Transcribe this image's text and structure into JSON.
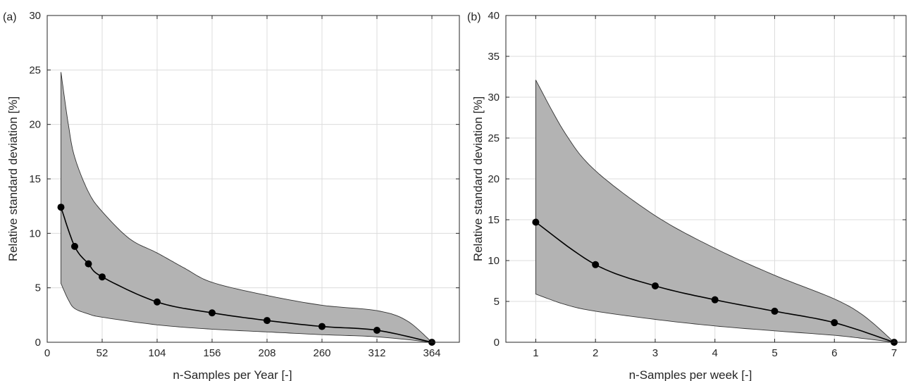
{
  "colors": {
    "band": "#b3b3b3",
    "line": "#000000",
    "grid": "#dcdcdc",
    "axis": "#262626"
  },
  "chart_data": [
    {
      "panel_label": "(a)",
      "type": "line",
      "xlabel": "n-Samples per Year [-]",
      "ylabel": "Relative standard deviation  [%]",
      "xlim": [
        0,
        390
      ],
      "ylim": [
        0,
        30
      ],
      "xticks": [
        0,
        52,
        104,
        156,
        208,
        260,
        312,
        364
      ],
      "yticks": [
        0,
        5,
        10,
        15,
        20,
        25,
        30
      ],
      "grid": true,
      "series": [
        {
          "role": "mean",
          "x": [
            13,
            26,
            39,
            52,
            104,
            156,
            208,
            260,
            312,
            364
          ],
          "y": [
            12.4,
            8.8,
            7.2,
            6.0,
            3.7,
            2.7,
            2.0,
            1.45,
            1.1,
            0.0
          ]
        },
        {
          "role": "upper",
          "x": [
            13,
            20,
            26,
            39,
            52,
            78,
            104,
            130,
            156,
            208,
            260,
            312,
            340,
            364
          ],
          "y": [
            24.8,
            20.0,
            17.0,
            13.8,
            12.0,
            9.5,
            8.2,
            6.8,
            5.5,
            4.3,
            3.4,
            2.9,
            2.0,
            0.0
          ]
        },
        {
          "role": "lower",
          "x": [
            13,
            20,
            26,
            39,
            52,
            104,
            156,
            208,
            260,
            312,
            364
          ],
          "y": [
            5.4,
            3.9,
            3.1,
            2.6,
            2.3,
            1.6,
            1.2,
            0.95,
            0.7,
            0.5,
            0.0
          ]
        }
      ]
    },
    {
      "panel_label": "(b)",
      "type": "line",
      "xlabel": "n-Samples per week [-]",
      "ylabel": "Relative standard deviation [%]",
      "xlim": [
        0.5,
        7.2
      ],
      "ylim": [
        0,
        40
      ],
      "xticks": [
        1,
        2,
        3,
        4,
        5,
        6,
        7
      ],
      "yticks": [
        0,
        5,
        10,
        15,
        20,
        25,
        30,
        35,
        40
      ],
      "grid": true,
      "series": [
        {
          "role": "mean",
          "x": [
            1,
            2,
            3,
            4,
            5,
            6,
            7
          ],
          "y": [
            14.7,
            9.5,
            6.9,
            5.2,
            3.8,
            2.4,
            0.0
          ]
        },
        {
          "role": "upper",
          "x": [
            1,
            1.5,
            2,
            3,
            4,
            5,
            6,
            6.5,
            7
          ],
          "y": [
            32.1,
            25.5,
            21.0,
            15.5,
            11.5,
            8.2,
            5.3,
            3.2,
            0.0
          ]
        },
        {
          "role": "lower",
          "x": [
            1,
            1.5,
            2,
            3,
            4,
            5,
            6,
            6.5,
            7
          ],
          "y": [
            5.9,
            4.6,
            3.8,
            2.8,
            2.0,
            1.4,
            0.85,
            0.45,
            0.0
          ]
        }
      ]
    }
  ]
}
